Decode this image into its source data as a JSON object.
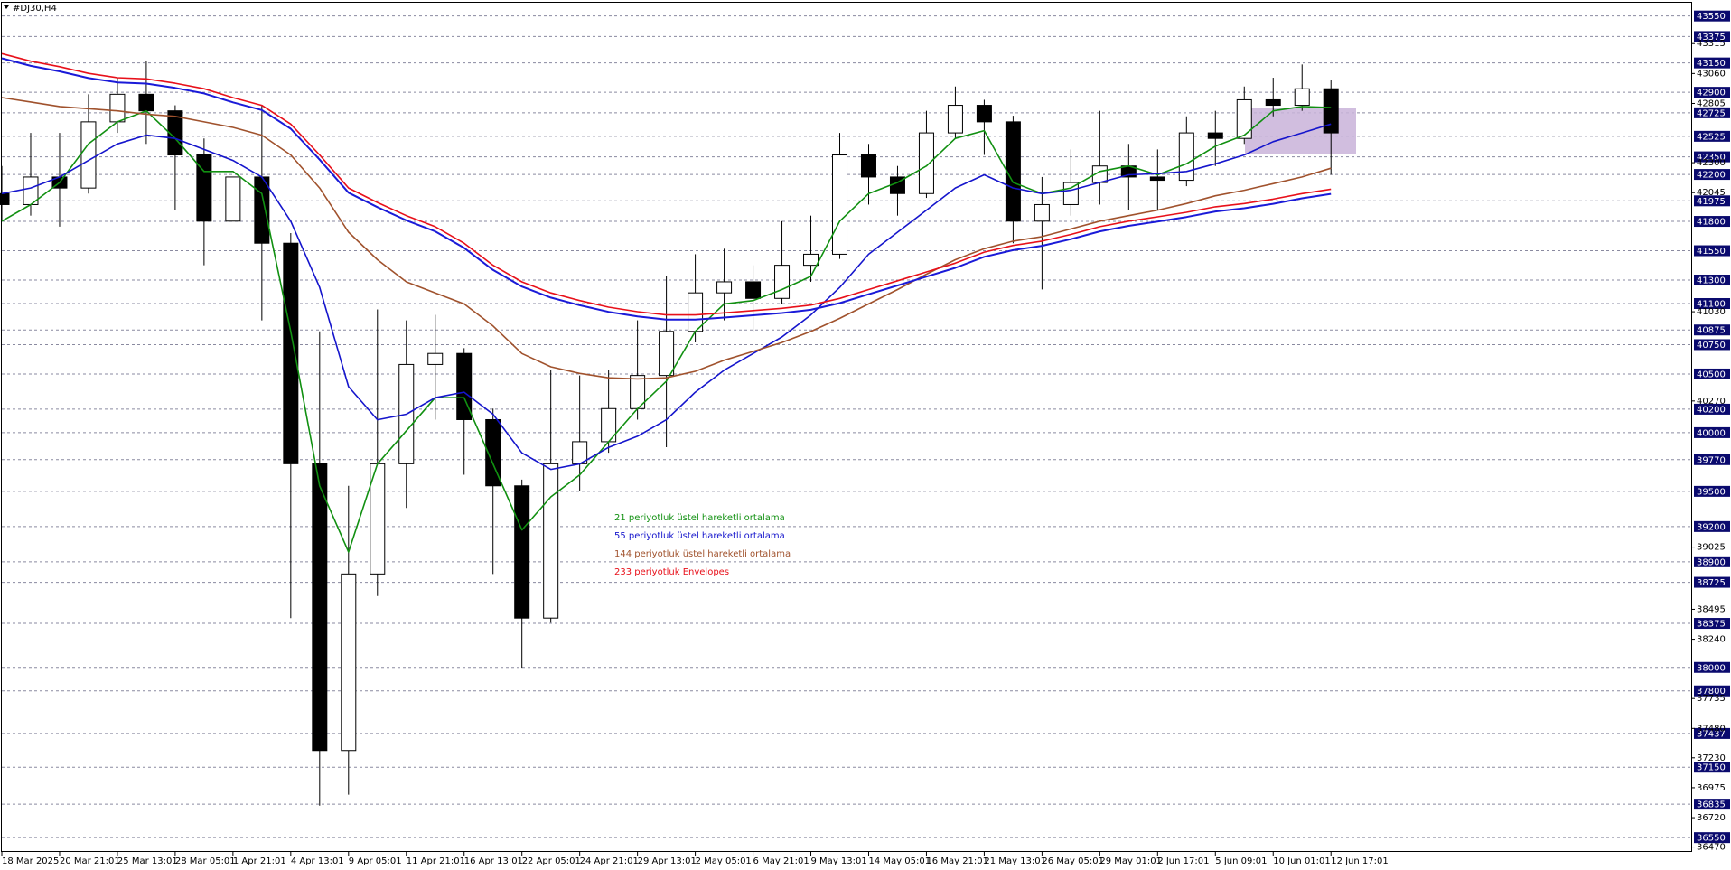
{
  "chart_data": {
    "type": "candlestick",
    "title": "#DJ30,H4",
    "x": [
      0,
      0.5,
      1,
      1.5,
      2,
      2.5,
      3,
      3.5,
      4,
      4.5,
      5,
      5.5,
      6,
      6.5,
      7,
      7.5,
      8,
      8.5,
      9,
      9.5,
      10,
      10.5,
      11,
      11.5,
      12,
      12.5,
      13,
      13.5,
      14,
      14.5,
      15,
      15.5,
      16,
      16.5,
      17,
      17.5,
      18,
      18.5,
      19,
      19.5,
      20,
      20.5,
      21,
      21.5,
      22,
      22.5,
      23
    ],
    "candles": {
      "open": [
        42037,
        41943,
        42178,
        42084,
        42648,
        42883,
        42742,
        42366,
        41802,
        42178,
        41614,
        39735,
        37292,
        38796,
        39735,
        40581,
        40675,
        40111,
        39547,
        38420,
        39735,
        39923,
        40205,
        40487,
        40863,
        41191,
        41285,
        41144,
        41426,
        41520,
        42366,
        42178,
        42037,
        42554,
        42789,
        42648,
        41802,
        41943,
        42131,
        42272,
        42178,
        42150,
        42554,
        42507,
        42836,
        42789,
        42930
      ],
      "high": [
        42272,
        42554,
        42554,
        42883,
        43024,
        43165,
        42789,
        42507,
        42178,
        42789,
        41700,
        40863,
        39547,
        41050,
        40957,
        41004,
        40720,
        40205,
        39600,
        40534,
        40487,
        40534,
        40957,
        41332,
        41520,
        41567,
        41426,
        41802,
        41849,
        42554,
        42460,
        42272,
        42742,
        42949,
        42836,
        42700,
        42178,
        42413,
        42742,
        42460,
        42413,
        42695,
        42742,
        42949,
        43024,
        43137,
        43005
      ],
      "low": [
        41802,
        41849,
        41755,
        42037,
        42554,
        42460,
        41896,
        41426,
        41802,
        40957,
        38420,
        36822,
        36916,
        38608,
        39359,
        40111,
        39641,
        38796,
        37997,
        38380,
        39500,
        39829,
        40111,
        39876,
        40769,
        40957,
        40863,
        41097,
        41285,
        41480,
        41943,
        41849,
        42000,
        42507,
        42366,
        41614,
        41220,
        41849,
        41943,
        41896,
        41896,
        42100,
        42272,
        42460,
        42695,
        42742,
        42197
      ],
      "close": [
        41943,
        42178,
        42084,
        42648,
        42883,
        42742,
        42366,
        41802,
        42178,
        41614,
        39735,
        37292,
        38796,
        39735,
        40581,
        40675,
        40111,
        39547,
        38420,
        39735,
        39923,
        40205,
        40487,
        40863,
        41191,
        41285,
        41144,
        41426,
        41520,
        42366,
        42178,
        42037,
        42554,
        42789,
        42648,
        41802,
        41943,
        42131,
        42272,
        42178,
        42150,
        42554,
        42507,
        42836,
        42789,
        42930,
        42554
      ]
    },
    "series": [
      {
        "name": "21 periyotluk üstel hareketli ortalama",
        "color": "#119011",
        "values": [
          41802,
          41943,
          42131,
          42460,
          42648,
          42742,
          42507,
          42225,
          42225,
          42037,
          40863,
          39547,
          38983,
          39734,
          40016,
          40298,
          40298,
          39734,
          39171,
          39453,
          39641,
          39922,
          40204,
          40439,
          40863,
          41097,
          41125,
          41219,
          41332,
          41802,
          42037,
          42131,
          42272,
          42507,
          42573,
          42131,
          42037,
          42084,
          42225,
          42272,
          42197,
          42291,
          42441,
          42535,
          42742,
          42779,
          42770
        ]
      },
      {
        "name": "55 periyotluk üstel hareketli ortalama",
        "color": "#1515cc",
        "values": [
          42037,
          42084,
          42178,
          42319,
          42460,
          42535,
          42507,
          42413,
          42319,
          42178,
          41802,
          41238,
          40392,
          40110,
          40157,
          40298,
          40345,
          40157,
          39828,
          39687,
          39734,
          39875,
          39969,
          40110,
          40345,
          40533,
          40674,
          40815,
          41003,
          41238,
          41520,
          41708,
          41896,
          42084,
          42197,
          42084,
          42037,
          42065,
          42131,
          42197,
          42207,
          42225,
          42291,
          42366,
          42479,
          42554,
          42629
        ]
      },
      {
        "name": "144 periyotluk üstel hareketli ortalama",
        "color": "#a0522d",
        "values": [
          42855,
          42817,
          42779,
          42760,
          42742,
          42713,
          42695,
          42648,
          42601,
          42535,
          42366,
          42084,
          41708,
          41473,
          41285,
          41191,
          41097,
          40909,
          40674,
          40561,
          40505,
          40467,
          40458,
          40467,
          40523,
          40617,
          40692,
          40768,
          40862,
          40974,
          41097,
          41219,
          41350,
          41473,
          41567,
          41632,
          41670,
          41736,
          41802,
          41849,
          41896,
          41952,
          42018,
          42065,
          42121,
          42178,
          42253
        ]
      },
      {
        "name": "233 periyotluk Envelopes",
        "color": "#e8101a",
        "color_lower": "#1a1ad8",
        "values": [
          43230,
          43165,
          43118,
          43061,
          43024,
          43014,
          42977,
          42930,
          42854,
          42789,
          42629,
          42366,
          42084,
          41961,
          41849,
          41755,
          41614,
          41426,
          41285,
          41191,
          41125,
          41069,
          41031,
          41003,
          41003,
          41021,
          41040,
          41059,
          41087,
          41144,
          41219,
          41294,
          41369,
          41444,
          41538,
          41595,
          41632,
          41689,
          41755,
          41802,
          41839,
          41877,
          41924,
          41952,
          41990,
          42037,
          42074
        ],
        "values_lower": [
          43190,
          43125,
          43078,
          43021,
          42984,
          42974,
          42937,
          42890,
          42814,
          42749,
          42589,
          42326,
          42044,
          41921,
          41809,
          41715,
          41574,
          41386,
          41245,
          41151,
          41085,
          41029,
          40991,
          40963,
          40963,
          40981,
          41000,
          41019,
          41047,
          41104,
          41179,
          41254,
          41329,
          41404,
          41498,
          41555,
          41592,
          41649,
          41715,
          41762,
          41799,
          41837,
          41884,
          41912,
          41950,
          41997,
          42034
        ]
      }
    ],
    "xlim": [
      0,
      29.25
    ],
    "ylim": [
      36428,
      43663
    ],
    "xticks": [
      {
        "value": 0,
        "label": "18 Mar 2025"
      },
      {
        "value": 1,
        "label": "20 Mar 21:01"
      },
      {
        "value": 2,
        "label": "25 Mar 13:01"
      },
      {
        "value": 3,
        "label": "28 Mar 05:01"
      },
      {
        "value": 4,
        "label": "1 Apr 21:01"
      },
      {
        "value": 5,
        "label": "4 Apr 13:01"
      },
      {
        "value": 6,
        "label": "9 Apr 05:01"
      },
      {
        "value": 7,
        "label": "11 Apr 21:01"
      },
      {
        "value": 8,
        "label": "16 Apr 13:01"
      },
      {
        "value": 9,
        "label": "22 Apr 05:01"
      },
      {
        "value": 10,
        "label": "24 Apr 21:01"
      },
      {
        "value": 11,
        "label": "29 Apr 13:01"
      },
      {
        "value": 12,
        "label": "2 May 05:01"
      },
      {
        "value": 13,
        "label": "6 May 21:01"
      },
      {
        "value": 14,
        "label": "9 May 13:01"
      },
      {
        "value": 15,
        "label": "14 May 05:01"
      },
      {
        "value": 16,
        "label": "16 May 21:01"
      },
      {
        "value": 17,
        "label": "21 May 13:01"
      },
      {
        "value": 18,
        "label": "26 May 05:01"
      },
      {
        "value": 19,
        "label": "29 May 01:01"
      },
      {
        "value": 20,
        "label": "2 Jun 17:01"
      },
      {
        "value": 21,
        "label": "5 Jun 09:01"
      },
      {
        "value": 22,
        "label": "10 Jun 01:01"
      },
      {
        "value": 23,
        "label": "12 Jun 17:01"
      }
    ],
    "yticks": [
      43550,
      43375,
      43150,
      42900,
      42725,
      42525,
      42350,
      42200,
      41975,
      41800,
      41550,
      41300,
      41100,
      40875,
      40750,
      40500,
      40200,
      40000,
      39770,
      39500,
      39200,
      38900,
      38725,
      38375,
      38000,
      37800,
      37437,
      37150,
      36835,
      36550
    ],
    "yticks_plain": [
      43315,
      43060,
      42805,
      42300,
      42045,
      41030,
      40270,
      39025,
      38495,
      38240,
      37735,
      37480,
      37230,
      36975,
      36720,
      36470
    ],
    "grid": true
  }
}
